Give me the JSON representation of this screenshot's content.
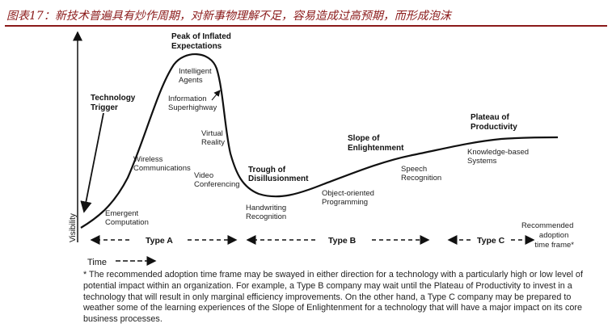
{
  "header": {
    "title": "图表17：新技术普遍具有炒作周期，对新事物理解不足，容易造成过高预期，而形成泡沫"
  },
  "axes": {
    "y_label": "Visibility",
    "x_label": "Time"
  },
  "phases": {
    "trigger": "Technology Trigger",
    "peak": "Peak of Inflated Expectations",
    "trough": "Trough of Disillusionment",
    "slope": "Slope of Enlightenment",
    "plateau": "Plateau of Productivity"
  },
  "technologies": {
    "emergent_computation": "Emergent Computation",
    "wireless": "Wireless Communications",
    "intelligent_agents": "Intelligent Agents",
    "info_superhighway": "Information Superhighway",
    "virtual_reality": "Virtual Reality",
    "video_conf": "Video Conferencing",
    "handwriting": "Handwriting Recognition",
    "oop": "Object-oriented Programming",
    "speech": "Speech Recognition",
    "knowledge": "Knowledge-based Systems"
  },
  "timeframes": {
    "type_a": "Type A",
    "type_b": "Type B",
    "type_c": "Type C",
    "recommended": "Recommended adoption time frame*"
  },
  "footnote": "* The recommended adoption time frame may be swayed in either direction for a technology with a particularly high or low level of potential impact within an organization.  For example, a Type B company may wait until the Plateau of Productivity to invest in a technology that will result in only marginal efficiency improvements.  On the other hand, a Type C company may be prepared to weather some of the learning experiences of the Slope of Enlightenment for a technology that will have a major impact on its core business processes."
}
